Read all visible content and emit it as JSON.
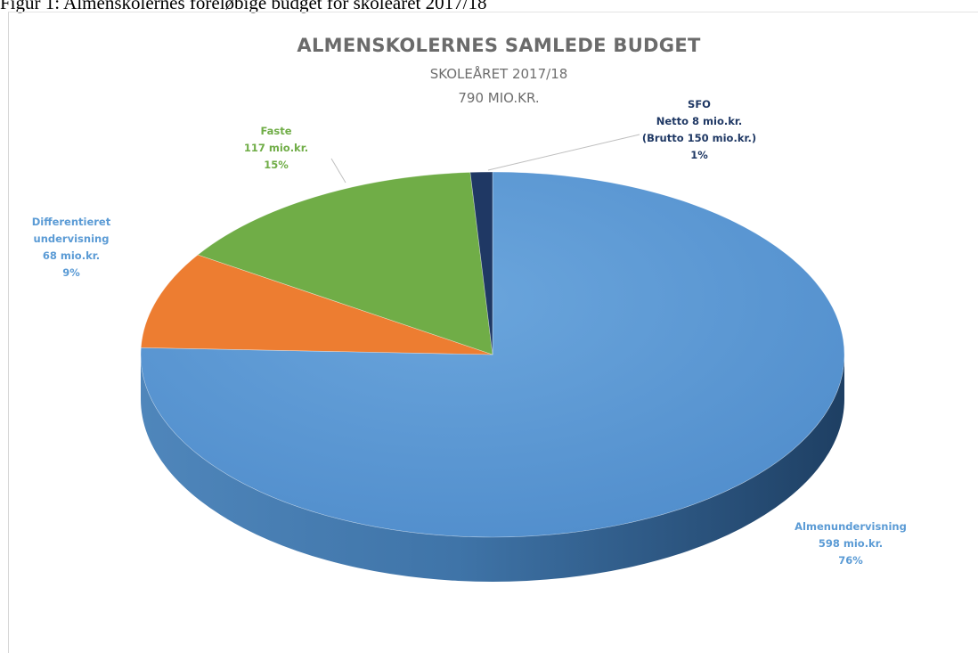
{
  "caption": "Figur 1: Almenskolernes foreløbige budget for skoleåret 2017/18",
  "chart_data": {
    "type": "pie",
    "title": "ALMENSKOLERNES SAMLEDE BUDGET",
    "subtitle": [
      "SKOLEÅRET 2017/18",
      "790 MIO.KR."
    ],
    "unit": "mio.kr.",
    "slices": [
      {
        "name": "Almenundervisning",
        "value": 598,
        "percent": 76,
        "color": "#5b9bd5",
        "label": [
          "Almenundervisning",
          "598 mio.kr.",
          "76%"
        ]
      },
      {
        "name": "Differentieret undervisning",
        "value": 68,
        "percent": 9,
        "color": "#ed7d31",
        "label": [
          "Differentieret",
          "undervisning",
          "68 mio.kr.",
          "9%"
        ]
      },
      {
        "name": "Faste",
        "value": 117,
        "percent": 15,
        "color": "#70ad47",
        "label": [
          "Faste",
          "117 mio.kr.",
          "15%"
        ]
      },
      {
        "name": "SFO",
        "value": 8,
        "percent": 1,
        "color": "#1f3864",
        "label": [
          "SFO",
          "Netto 8 mio.kr.",
          "(Brutto 150 mio.kr.)",
          "1%"
        ]
      }
    ]
  }
}
